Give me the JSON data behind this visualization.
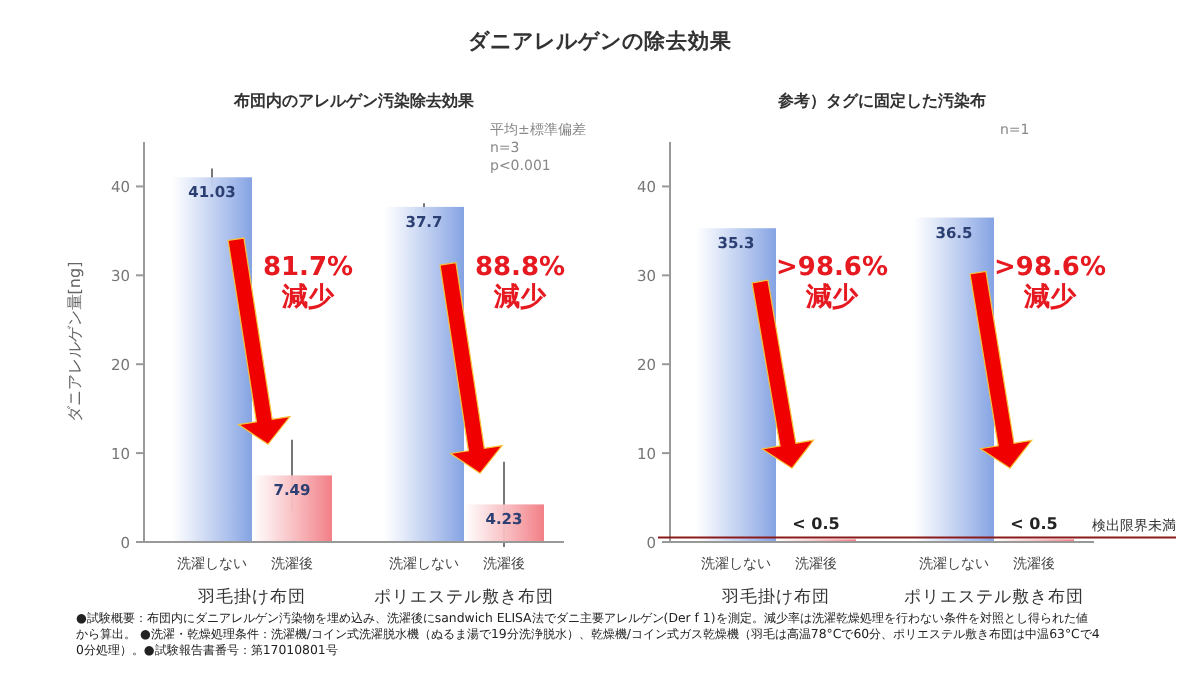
{
  "chart_data": [
    {
      "type": "bar",
      "title": "ダニアレルゲンの除去効果",
      "subtitle": "布団内のアレルゲン汚染除去効果",
      "ylabel": "ダニアレルゲン量[ng]",
      "categories": [
        "洗濯しない",
        "洗濯後",
        "洗濯しない",
        "洗濯後"
      ],
      "values": [
        41.03,
        7.49,
        37.7,
        4.23
      ],
      "colors": [
        "#85a3e3",
        "#f27f86",
        "#85a3e3",
        "#f27f86"
      ],
      "errors": [
        1.0,
        4.0,
        0.4,
        4.8
      ],
      "data_labels": true,
      "ylim": [
        0,
        45
      ],
      "yticks": [
        0,
        10,
        20,
        30,
        40
      ],
      "grid": false,
      "annotations": [
        "平均±標準偏差\nn=3\np<0.001",
        "81.7%\n減少",
        "88.8%\n減少",
        "羽毛掛け布団",
        "ポリエステル敷き布団",
        "●試験概要：布団内にダニアレルゲン汚染物を埋め込み、洗濯後にsandwich ELISA法でダニ主要アレルゲン(Der f 1)を測定。減少率は洗濯乾燥処理を行わない条件を対照とし得られた値から算出。 ●洗濯・乾燥処理条件：洗濯機/コイン式洗濯脱水機（ぬるま湯で19分洗浄脱水）、乾燥機/コイン式ガス乾燥機（羽毛は高温78°Cで60分、ポリエステル敷き布団は中温63°Cで40分処理）。●試験報告書番号：第17010801号"
      ]
    },
    {
      "type": "bar",
      "subtitle": "参考）タグに固定した汚染布",
      "categories": [
        "洗濯しない",
        "洗濯後",
        "洗濯しない",
        "洗濯後"
      ],
      "values": [
        35.3,
        0.3,
        36.5,
        0.3
      ],
      "colors": [
        "#85a3e3",
        "#f27f86",
        "#85a3e3",
        "#f27f86"
      ],
      "value_labels": [
        "35.3",
        "< 0.5",
        "36.5",
        "< 0.5"
      ],
      "ylim": [
        0,
        45
      ],
      "yticks": [
        0,
        10,
        20,
        30,
        40
      ],
      "grid": false,
      "ref_lines": [
        {
          "axis": "y",
          "value": 0.5,
          "label": "検出限界未満",
          "color": "#8b1a1a"
        }
      ],
      "annotations": [
        "n=1",
        ">98.6%\n減少",
        ">98.6%\n減少",
        "羽毛掛け布団",
        "ポリエステル敷き布団"
      ]
    }
  ]
}
